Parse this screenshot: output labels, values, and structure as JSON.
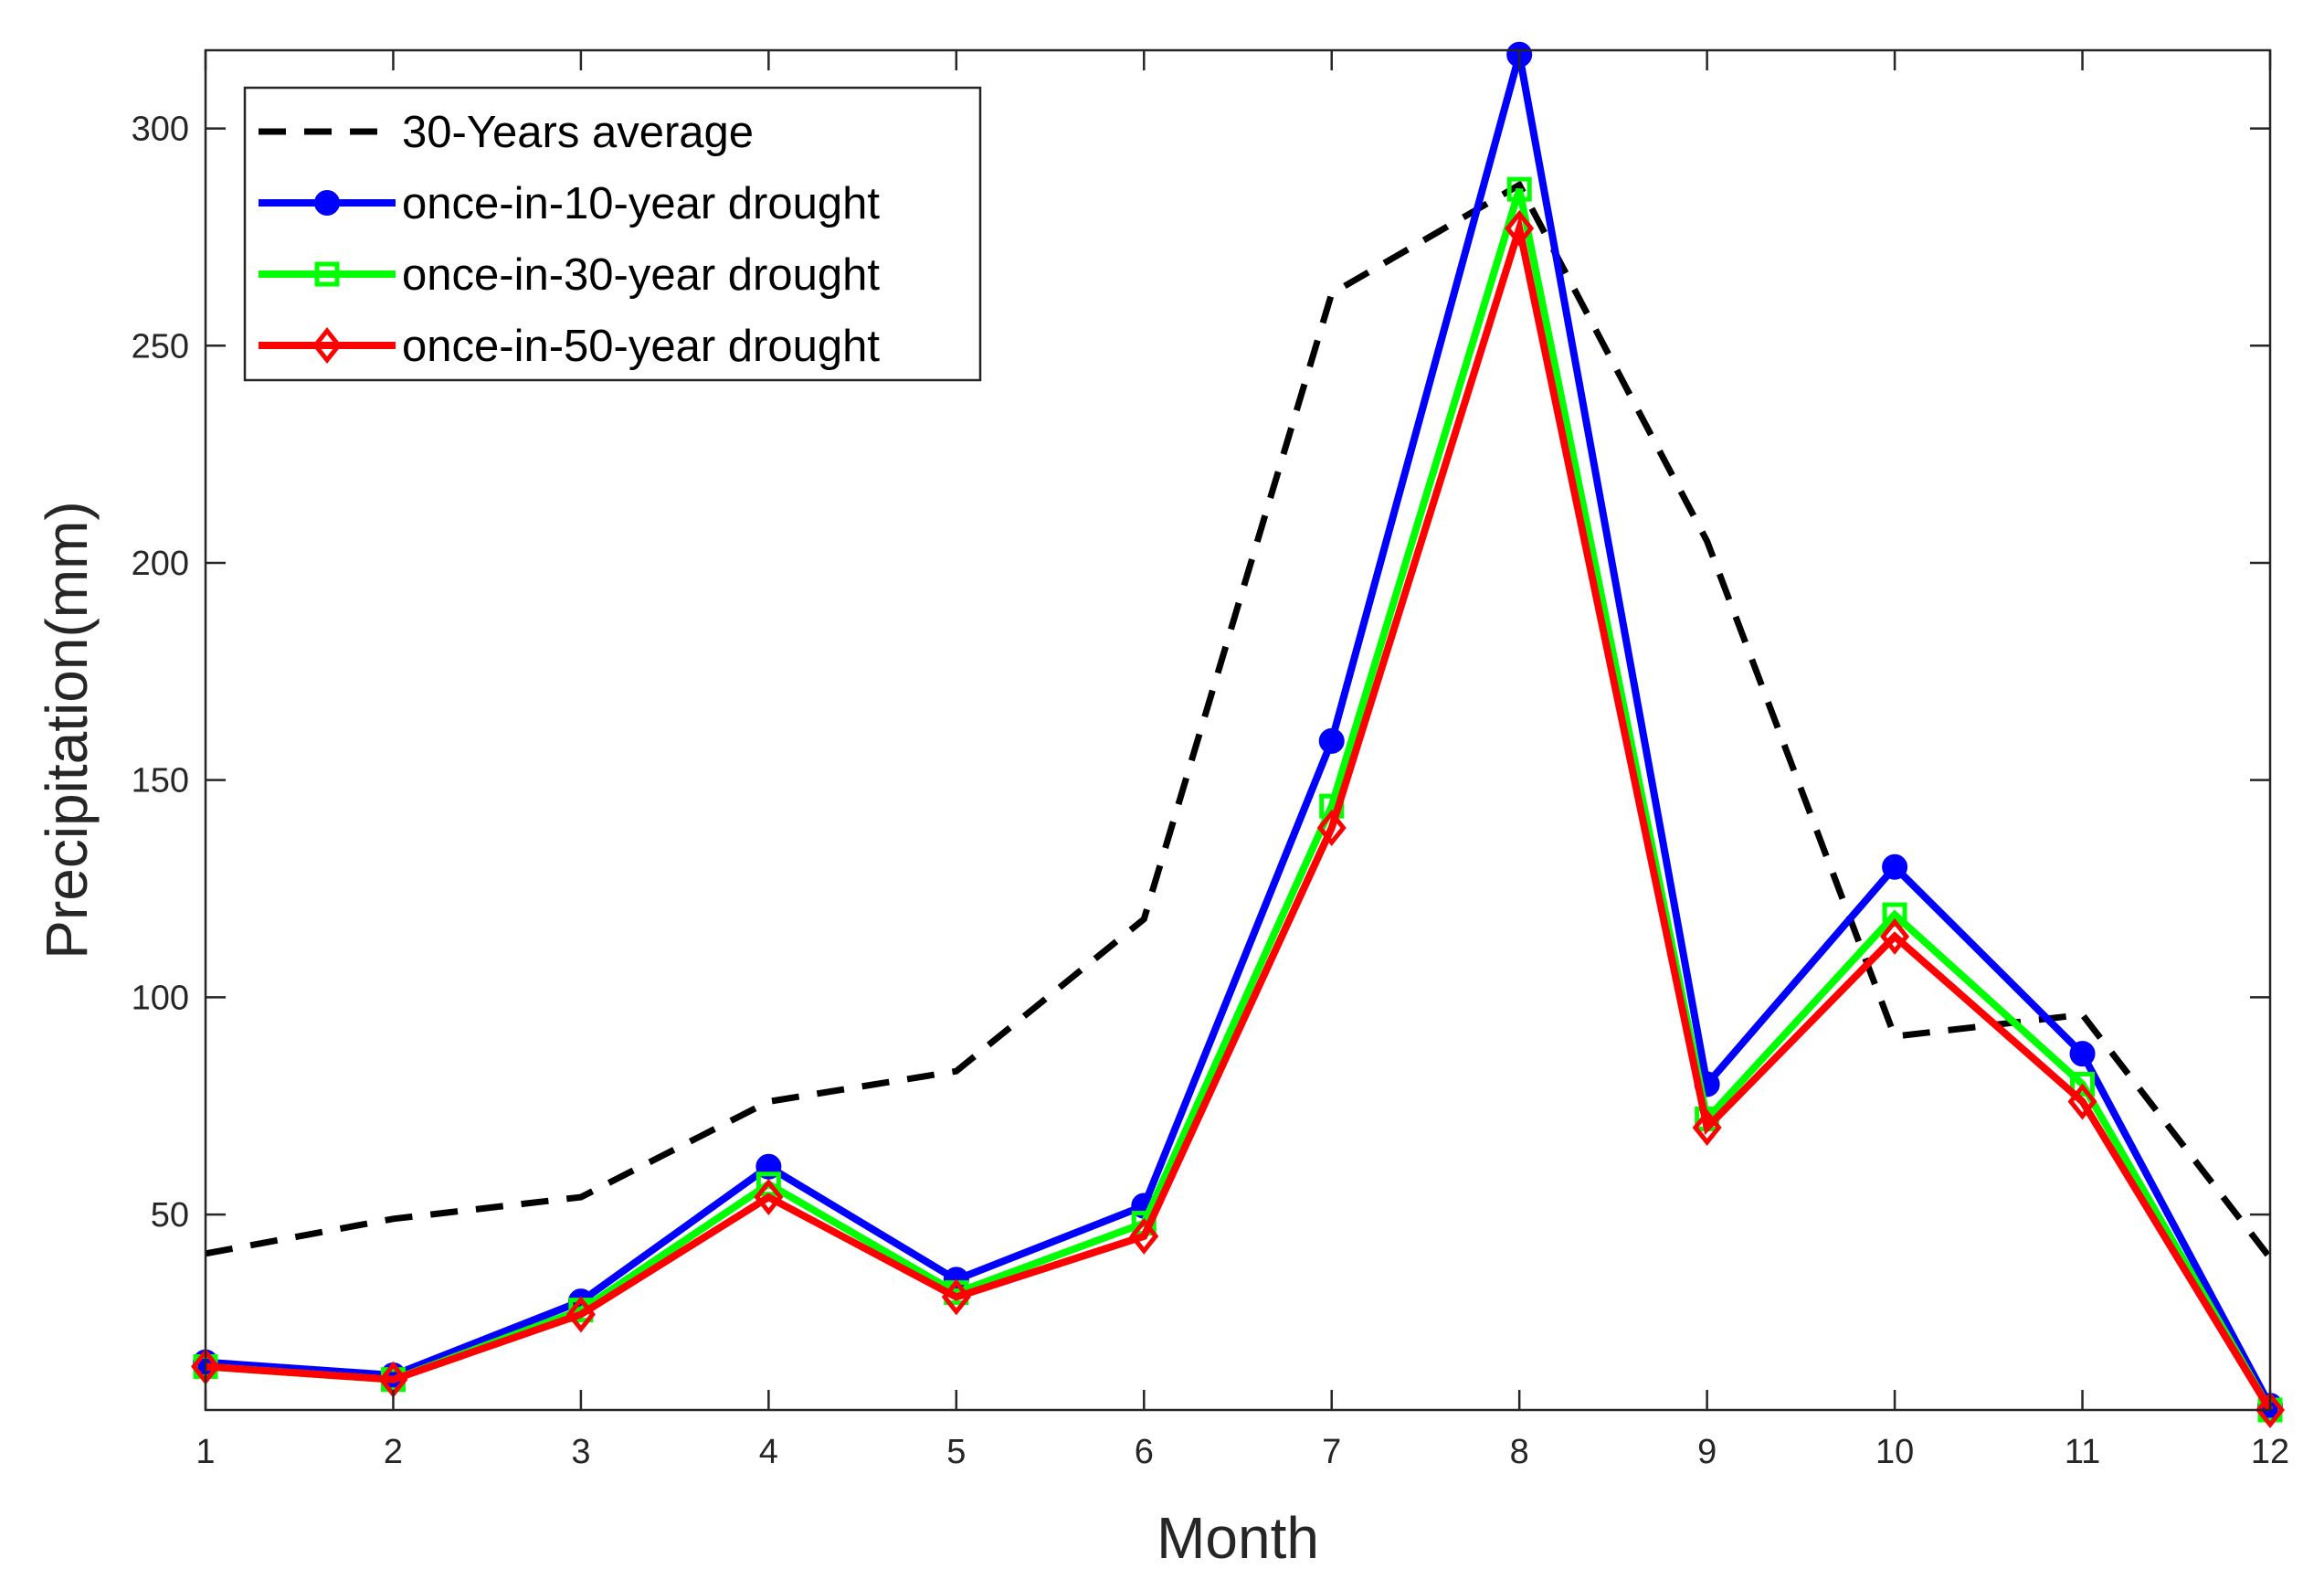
{
  "chart_data": {
    "type": "line",
    "title": "",
    "xlabel": "Month",
    "ylabel": "Precipitation(mm)",
    "x": [
      1,
      2,
      3,
      4,
      5,
      6,
      7,
      8,
      9,
      10,
      11,
      12
    ],
    "xlim": [
      1,
      12
    ],
    "ylim": [
      5,
      318
    ],
    "xticks": [
      1,
      2,
      3,
      4,
      5,
      6,
      7,
      8,
      9,
      10,
      11,
      12
    ],
    "yticks": [
      50,
      100,
      150,
      200,
      250,
      300
    ],
    "grid": false,
    "legend_position": "top-left",
    "series": [
      {
        "name": "30-Years average",
        "color": "#000000",
        "line_style": "dashed",
        "marker": "none",
        "values": [
          41,
          49,
          54,
          76,
          83,
          118,
          262,
          287,
          205,
          91,
          96,
          40
        ]
      },
      {
        "name": "once-in-10-year drought",
        "color": "#0000ff",
        "line_style": "solid",
        "marker": "circle",
        "values": [
          16,
          13,
          30,
          61,
          35,
          52,
          159,
          317,
          80,
          130,
          87,
          6
        ]
      },
      {
        "name": "once-in-30-year drought",
        "color": "#00ff00",
        "line_style": "solid",
        "marker": "square",
        "values": [
          15,
          12,
          28,
          57,
          32,
          48,
          144,
          286,
          72,
          119,
          80,
          5
        ]
      },
      {
        "name": "once-in-50-year drought",
        "color": "#ff0000",
        "line_style": "solid",
        "marker": "diamond",
        "values": [
          15,
          12,
          27,
          54,
          31,
          45,
          139,
          277,
          70,
          114,
          76,
          5
        ]
      }
    ]
  }
}
